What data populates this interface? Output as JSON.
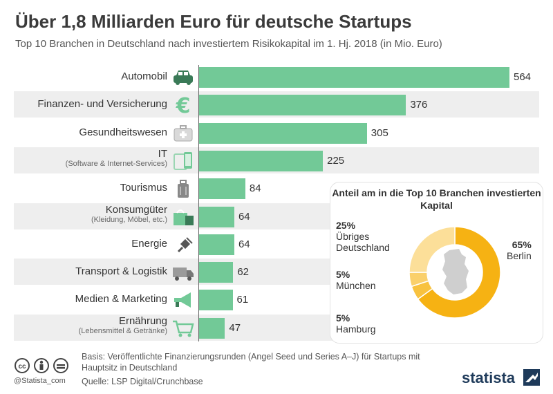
{
  "title": "Über 1,8 Milliarden Euro für deutsche Startups",
  "subtitle": "Top 10 Branchen in Deutschland nach investiertem Risikokapital im 1. Hj. 2018 (in Mio. Euro)",
  "colors": {
    "bar": "#72c997",
    "donut_main": "#f6b213",
    "donut_light": "#fcd887",
    "row_bg": "#eeeeee",
    "brand": "#1e3a5a"
  },
  "chart_data": [
    {
      "type": "bar",
      "orientation": "horizontal",
      "categories": [
        {
          "label": "Automobil",
          "sub": "",
          "icon": "car-icon"
        },
        {
          "label": "Finanzen- und Versicherung",
          "sub": "",
          "icon": "euro-icon"
        },
        {
          "label": "Gesundheitswesen",
          "sub": "",
          "icon": "first-aid-kit-icon"
        },
        {
          "label": "IT",
          "sub": "(Software & Internet-Services)",
          "icon": "devices-icon"
        },
        {
          "label": "Tourismus",
          "sub": "",
          "icon": "suitcase-icon"
        },
        {
          "label": "Konsumgüter",
          "sub": "(Kleidung, Möbel, etc.)",
          "icon": "shopping-bag-icon"
        },
        {
          "label": "Energie",
          "sub": "",
          "icon": "plug-icon"
        },
        {
          "label": "Transport & Logistik",
          "sub": "",
          "icon": "truck-icon"
        },
        {
          "label": "Medien & Marketing",
          "sub": "",
          "icon": "megaphone-icon"
        },
        {
          "label": "Ernährung",
          "sub": "(Lebensmittel & Getränke)",
          "icon": "shopping-cart-icon"
        }
      ],
      "values": [
        564,
        376,
        305,
        225,
        84,
        64,
        64,
        62,
        61,
        47
      ],
      "xlim": [
        0,
        564
      ]
    },
    {
      "type": "pie",
      "style": "donut",
      "title": "Anteil am in die Top 10 Branchen investierten Kapital",
      "slices": [
        {
          "label": "Berlin",
          "value": 65,
          "pct_label": "65%",
          "color": "#f6b213"
        },
        {
          "label": "Hamburg",
          "value": 5,
          "pct_label": "5%",
          "color": "#f8c23f"
        },
        {
          "label": "München",
          "value": 5,
          "pct_label": "5%",
          "color": "#fad06b"
        },
        {
          "label": "Übriges Deutschland",
          "value": 25,
          "pct_label": "25%",
          "color": "#fcdf99"
        }
      ]
    }
  ],
  "donut_labels": {
    "berlin_pct": "65%",
    "berlin_name": "Berlin",
    "uebriges_pct": "25%",
    "uebriges_name_1": "Übriges",
    "uebriges_name_2": "Deutschland",
    "muenchen_pct": "5%",
    "muenchen_name": "München",
    "hamburg_pct": "5%",
    "hamburg_name": "Hamburg"
  },
  "footer": {
    "basis": "Basis: Veröffentlichte Finanzierungsrunden (Angel Seed und Series A–J) für Startups mit Hauptsitz in Deutschland",
    "source": "Quelle: LSP Digital/Crunchbase",
    "handle": "@Statista_com",
    "brand": "statista"
  }
}
